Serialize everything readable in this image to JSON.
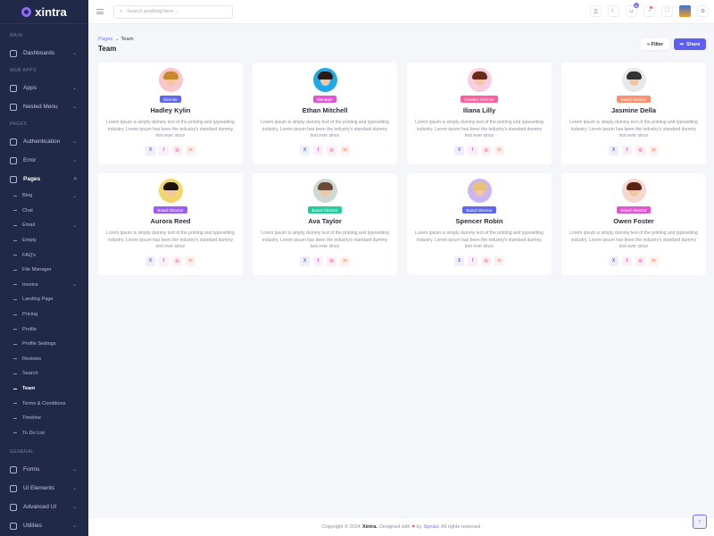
{
  "brand": "xintra",
  "sidebar": {
    "sections": {
      "main": "MAIN",
      "webapps": "WEB APPS",
      "pages": "PAGES",
      "general": "GENERAL"
    },
    "dashboards": "Dashboards",
    "apps": "Apps",
    "nested": "Nested Menu",
    "auth": "Authentication",
    "error": "Error",
    "pages": "Pages",
    "subitems": [
      "Blog",
      "Chat",
      "Email",
      "Empty",
      "FAQ's",
      "File Manager",
      "Invoice",
      "Landing Page",
      "Pricing",
      "Profile",
      "Profile Settings",
      "Reviews",
      "Search",
      "Team",
      "Terms & Conditions",
      "Timeline",
      "To Do List"
    ],
    "general": [
      "Forms",
      "Ui Elements",
      "Advanced UI",
      "Utilities"
    ]
  },
  "header": {
    "search_placeholder": "Search anything here ...",
    "cart_count": "5"
  },
  "breadcrumb": {
    "parent": "Pages",
    "current": "Team"
  },
  "page_title": "Team",
  "actions": {
    "filter": "Filter",
    "share": "Share"
  },
  "description": "Lorem ipsum is simply dummy text of the printing and typesetting industry. Lorem ipsum has been the industry's standard dummy text ever since",
  "members": [
    {
      "name": "Hadley Kylin",
      "role": "Director",
      "color": "#5c67f7"
    },
    {
      "name": "Ethan Mitchell",
      "role": "Manager",
      "color": "#e354d4"
    },
    {
      "name": "Iliana Lilly",
      "role": "Creative Director",
      "color": "#ff5d9f"
    },
    {
      "name": "Jasmine Della",
      "role": "Board Director",
      "color": "#ff8e6f"
    },
    {
      "name": "Aurora Reed",
      "role": "Board Director",
      "color": "#9e5cf7"
    },
    {
      "name": "Ava Taylor",
      "role": "Board Director",
      "color": "#21ce9e"
    },
    {
      "name": "Spencer Robin",
      "role": "Board Director",
      "color": "#5c67f7"
    },
    {
      "name": "Owen Foster",
      "role": "Board Director",
      "color": "#e354d4"
    }
  ],
  "social": {
    "x": "X",
    "facebook": "f",
    "instagram": "◎",
    "linkedin": "in"
  },
  "footer": {
    "pre": "Copyright © 2024",
    "brand": "Xintra.",
    "mid": "Designed with",
    "by": "by",
    "company": "Spruko",
    "post": "All rights reserved"
  }
}
